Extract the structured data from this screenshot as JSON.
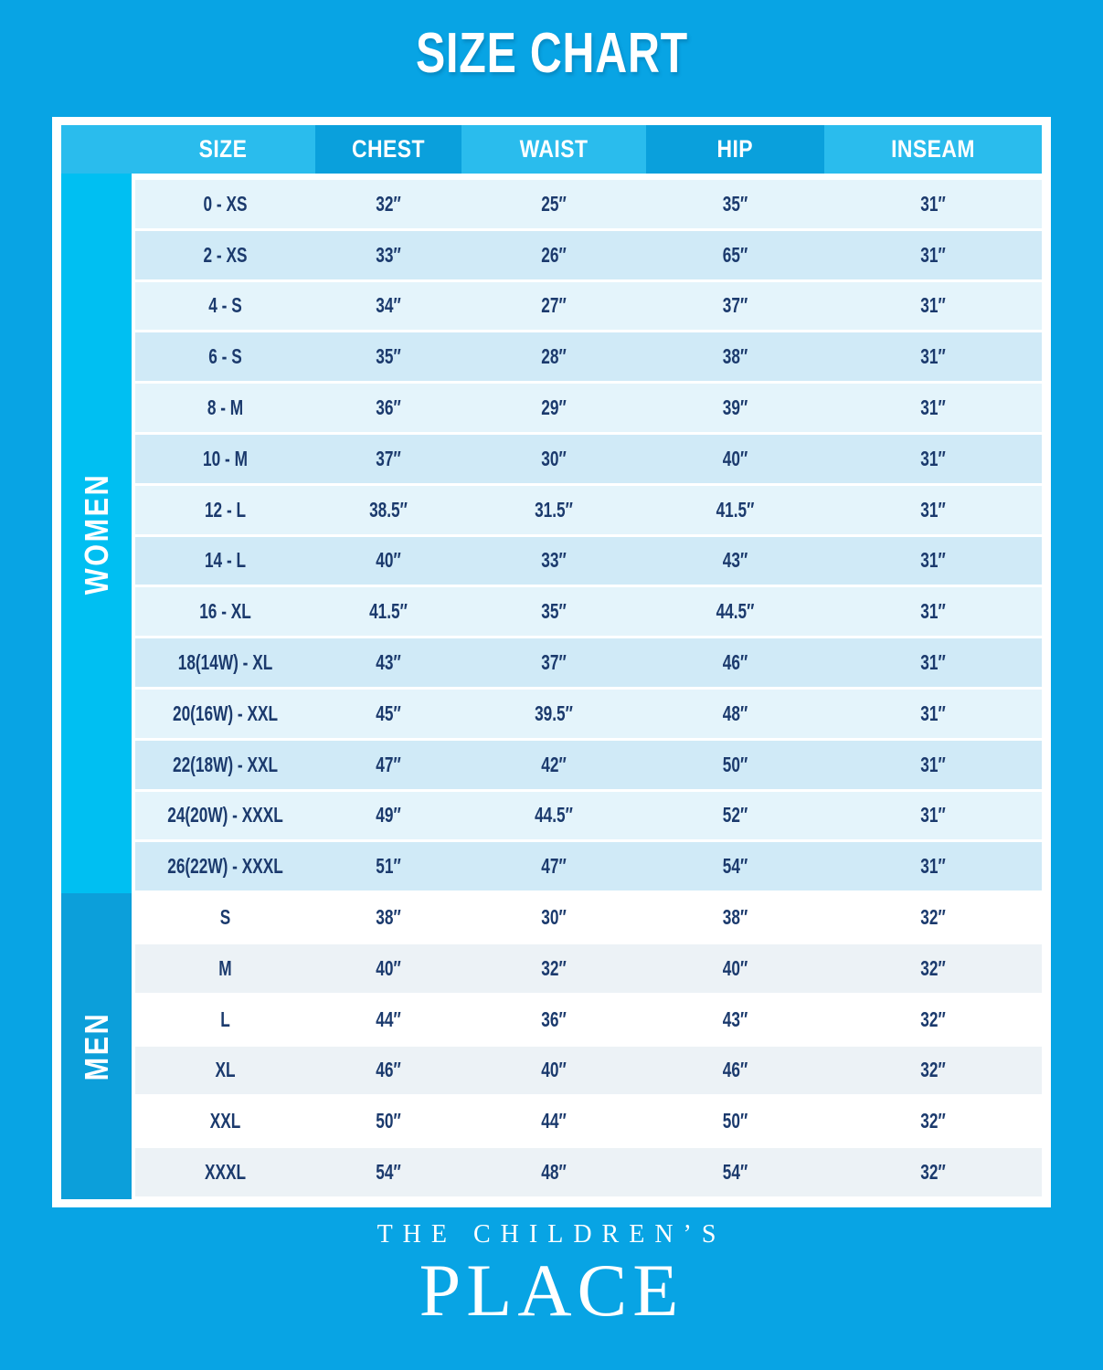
{
  "title": "SIZE CHART",
  "table": {
    "columns": [
      "SIZE",
      "CHEST",
      "WAIST",
      "HIP",
      "INSEAM"
    ],
    "sections": [
      {
        "label": "WOMEN",
        "rows": [
          [
            "0 - XS",
            "32″",
            "25″",
            "35″",
            "31″"
          ],
          [
            "2 - XS",
            "33″",
            "26″",
            "65″",
            "31″"
          ],
          [
            "4 - S",
            "34″",
            "27″",
            "37″",
            "31″"
          ],
          [
            "6 - S",
            "35″",
            "28″",
            "38″",
            "31″"
          ],
          [
            "8 - M",
            "36″",
            "29″",
            "39″",
            "31″"
          ],
          [
            "10 - M",
            "37″",
            "30″",
            "40″",
            "31″"
          ],
          [
            "12 - L",
            "38.5″",
            "31.5″",
            "41.5″",
            "31″"
          ],
          [
            "14 - L",
            "40″",
            "33″",
            "43″",
            "31″"
          ],
          [
            "16 - XL",
            "41.5″",
            "35″",
            "44.5″",
            "31″"
          ],
          [
            "18(14W) - XL",
            "43″",
            "37″",
            "46″",
            "31″"
          ],
          [
            "20(16W) - XXL",
            "45″",
            "39.5″",
            "48″",
            "31″"
          ],
          [
            "22(18W) - XXL",
            "47″",
            "42″",
            "50″",
            "31″"
          ],
          [
            "24(20W) - XXXL",
            "49″",
            "44.5″",
            "52″",
            "31″"
          ],
          [
            "26(22W) - XXXL",
            "51″",
            "47″",
            "54″",
            "31″"
          ]
        ]
      },
      {
        "label": "MEN",
        "rows": [
          [
            "S",
            "38″",
            "30″",
            "38″",
            "32″"
          ],
          [
            "M",
            "40″",
            "32″",
            "40″",
            "32″"
          ],
          [
            "L",
            "44″",
            "36″",
            "43″",
            "32″"
          ],
          [
            "XL",
            "46″",
            "40″",
            "46″",
            "32″"
          ],
          [
            "XXL",
            "50″",
            "44″",
            "50″",
            "32″"
          ],
          [
            "XXXL",
            "54″",
            "48″",
            "54″",
            "32″"
          ]
        ]
      }
    ]
  },
  "footer": {
    "line1": "THE CHILDREN’S",
    "line2": "PLACE"
  },
  "colors": {
    "bg": "#08a4e4",
    "header_light": "#2abced",
    "header_dark": "#0aa0dc",
    "sidebar_women": "#00bff2",
    "sidebar_men": "#0c9fda",
    "row_women_a": "#e4f4fb",
    "row_women_b": "#d0eaf7",
    "row_men_a": "#ffffff",
    "row_men_b": "#ecf2f6",
    "text_navy": "#1b3a6d",
    "frame": "#ffffff",
    "title_text": "#ffffff"
  }
}
